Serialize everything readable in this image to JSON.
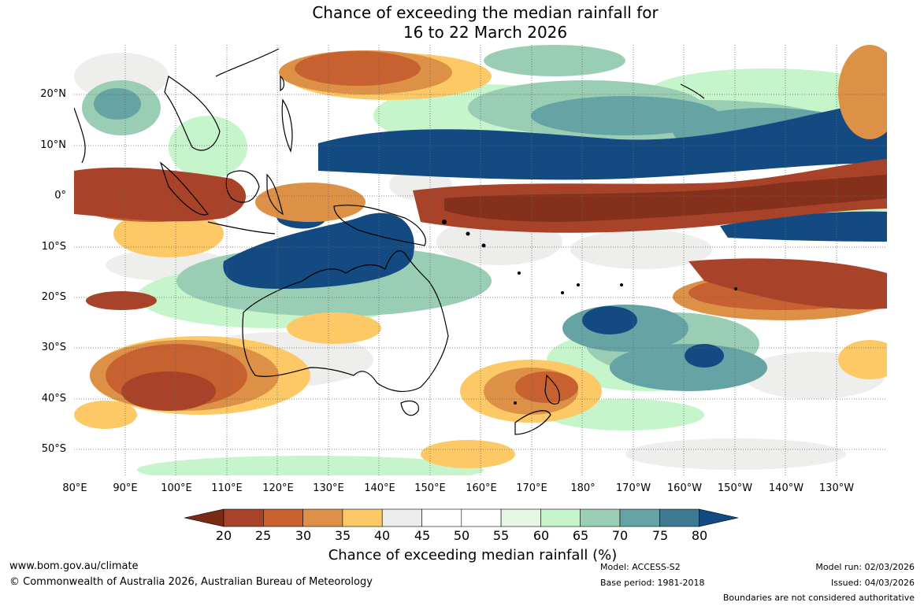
{
  "title": {
    "line1": "Chance of exceeding the median rainfall for",
    "line2": "16 to 22 March 2026"
  },
  "lat_labels": [
    "20°N",
    "10°N",
    "0°",
    "10°S",
    "20°S",
    "30°S",
    "40°S",
    "50°S"
  ],
  "lon_labels": [
    "80°E",
    "90°E",
    "100°E",
    "110°E",
    "120°E",
    "130°E",
    "140°E",
    "150°E",
    "160°E",
    "170°E",
    "180°",
    "170°W",
    "160°W",
    "150°W",
    "140°W",
    "130°W"
  ],
  "colorbar": {
    "ticks": [
      "20",
      "25",
      "30",
      "35",
      "40",
      "45",
      "50",
      "55",
      "60",
      "65",
      "70",
      "75",
      "80"
    ],
    "title": "Chance of exceeding median rainfall (%)",
    "colors": {
      "below_20": "#7a2a16",
      "c20_25": "#a8432a",
      "c25_30": "#c7612f",
      "c30_35": "#dd9146",
      "c35_40": "#fdc966",
      "c40_45": "#ececea",
      "c45_50": "#ffffff",
      "c50_55": "#ffffff",
      "c55_60": "#e6f7e6",
      "c60_65": "#c6f5cc",
      "c65_70": "#99cdb4",
      "c70_75": "#65a3a4",
      "c75_80": "#3f7a93",
      "above_80": "#134a82"
    }
  },
  "footer": {
    "website": "www.bom.gov.au/climate",
    "copyright": "© Commonwealth of Australia 2026, Australian Bureau of Meteorology",
    "model": "Model: ACCESS-S2",
    "base_period": "Base period: 1981-2018",
    "model_run": "Model run: 02/03/2026",
    "issued": "Issued: 04/03/2026",
    "disclaimer": "Boundaries are not considered authoritative"
  }
}
